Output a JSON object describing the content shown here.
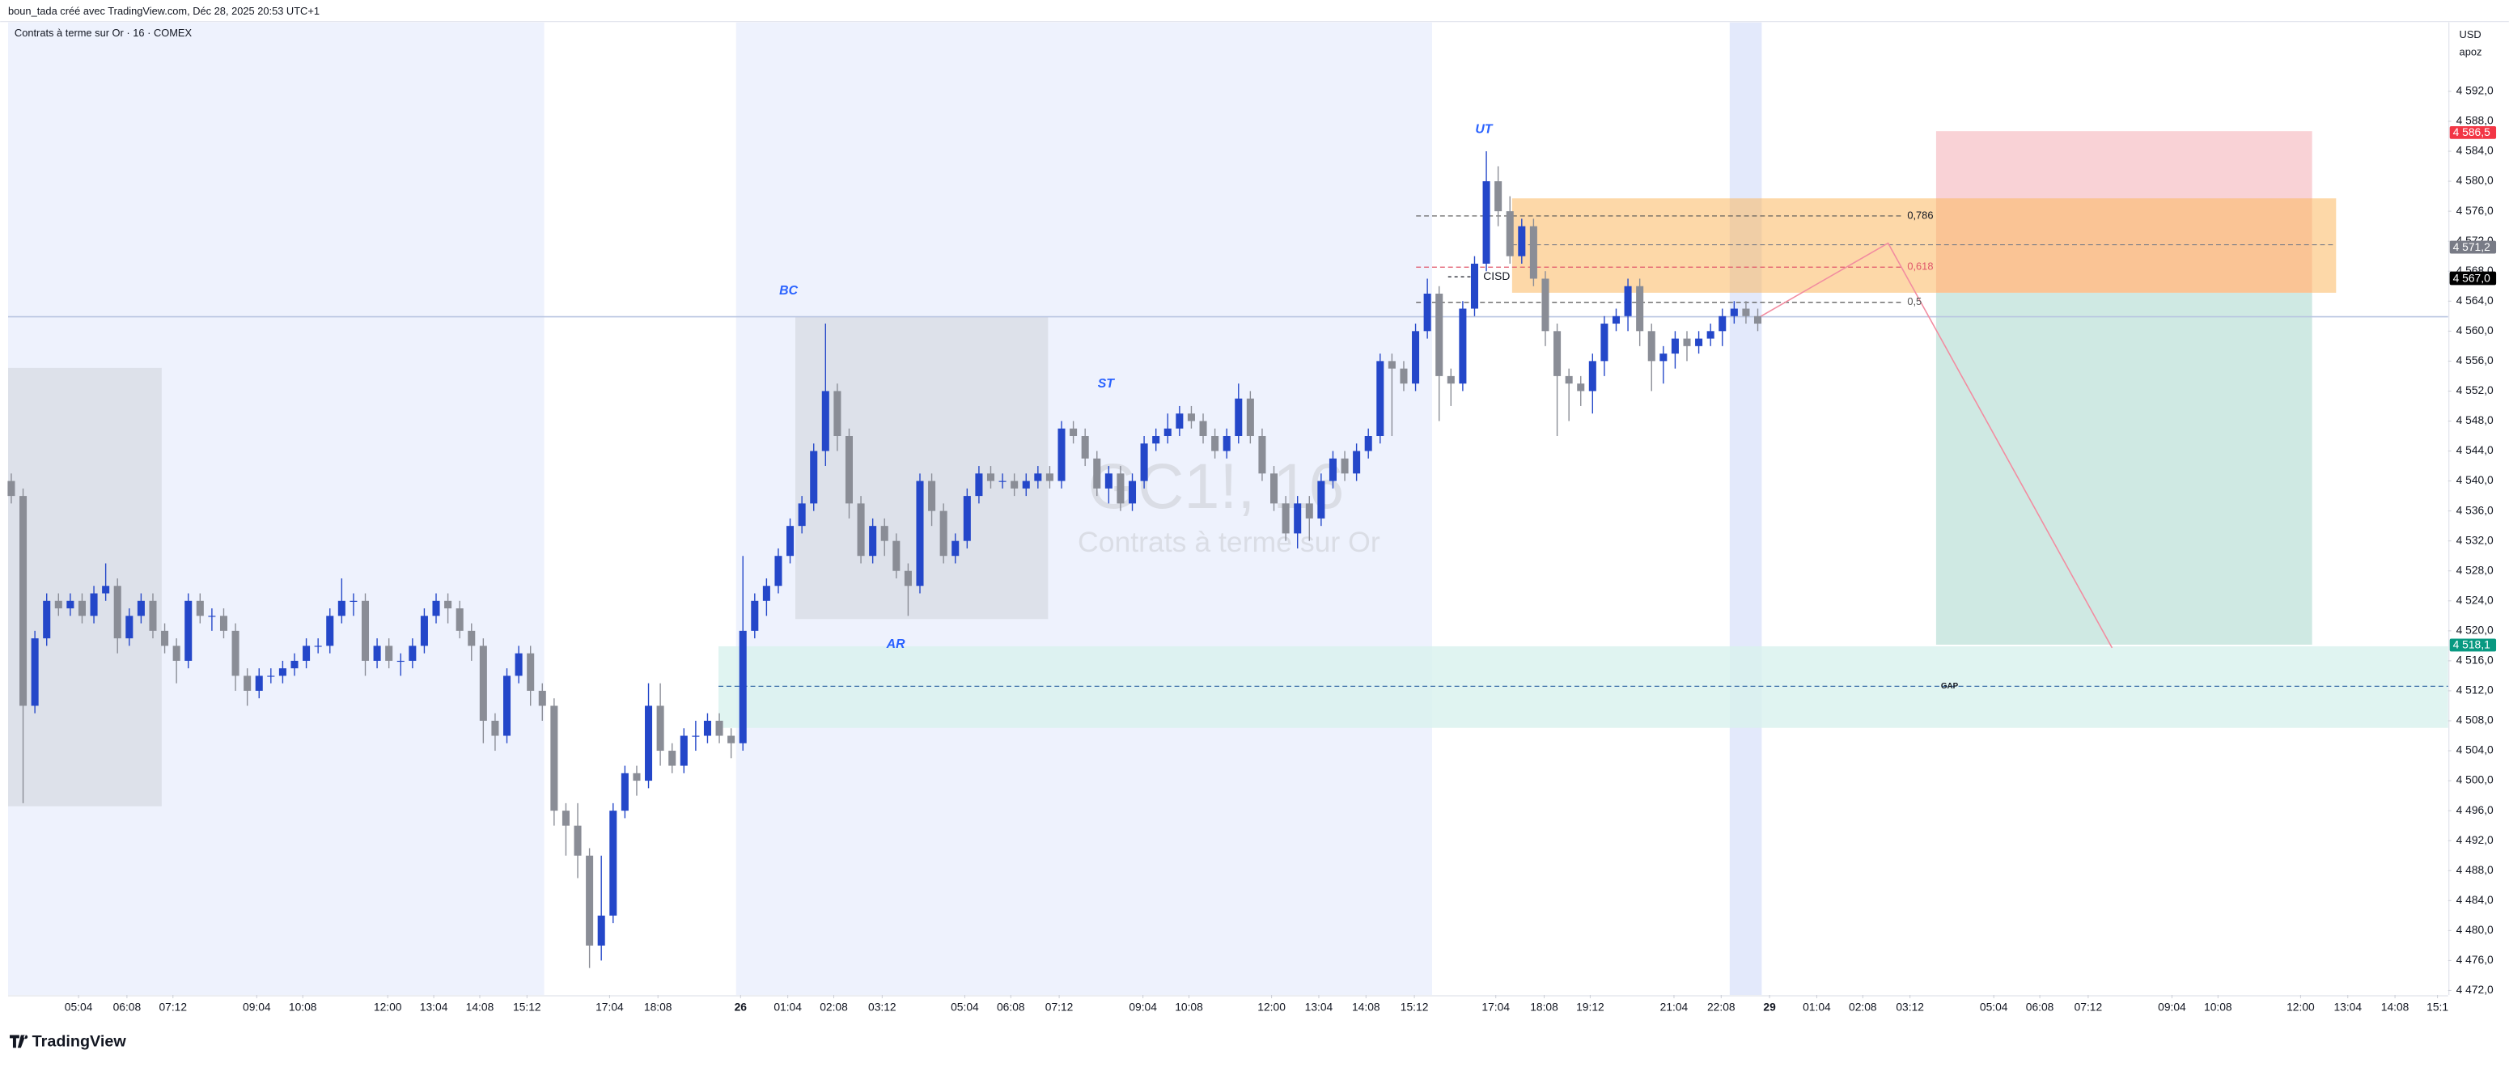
{
  "page": {
    "header": "boun_tada créé avec TradingView.com, Déc 28, 2025 20:53 UTC+1",
    "brand": "TradingView"
  },
  "chart_data": {
    "type": "candlestick",
    "symbol": "Contrats à terme sur Or · 16 · COMEX",
    "watermark_symbol": "GC1!, 16",
    "watermark_name": "Contrats à terme sur Or",
    "currency": "USD",
    "account": "apoz",
    "up_color": "#2447c9",
    "down_color": "#8a8d96",
    "annotations": {
      "bc": "BC",
      "st": "ST",
      "ar": "AR",
      "ut": "UT",
      "cisd": "CISD",
      "gap": "GAP"
    },
    "fib_levels": [
      "0,786",
      "0,618",
      "0,5"
    ],
    "xlim": [
      -0.27,
      206.5
    ],
    "ylim": [
      4471.4,
      4601.2
    ],
    "xticks": [
      {
        "value": 5.7,
        "label": "05:04"
      },
      {
        "value": 9.8,
        "label": "06:08"
      },
      {
        "value": 13.7,
        "label": "07:12"
      },
      {
        "value": 20.8,
        "label": "09:04"
      },
      {
        "value": 24.7,
        "label": "10:08"
      },
      {
        "value": 31.9,
        "label": "12:00"
      },
      {
        "value": 35.8,
        "label": "13:04"
      },
      {
        "value": 39.7,
        "label": "14:08"
      },
      {
        "value": 43.7,
        "label": "15:12"
      },
      {
        "value": 50.7,
        "label": "17:04"
      },
      {
        "value": 54.8,
        "label": "18:08"
      },
      {
        "value": 61.8,
        "label": "26"
      },
      {
        "value": 65.8,
        "label": "01:04"
      },
      {
        "value": 69.7,
        "label": "02:08"
      },
      {
        "value": 73.8,
        "label": "03:12"
      },
      {
        "value": 80.8,
        "label": "05:04"
      },
      {
        "value": 84.7,
        "label": "06:08"
      },
      {
        "value": 88.8,
        "label": "07:12"
      },
      {
        "value": 95.9,
        "label": "09:04"
      },
      {
        "value": 99.8,
        "label": "10:08"
      },
      {
        "value": 106.8,
        "label": "12:00"
      },
      {
        "value": 110.8,
        "label": "13:04"
      },
      {
        "value": 114.8,
        "label": "14:08"
      },
      {
        "value": 118.9,
        "label": "15:12"
      },
      {
        "value": 125.8,
        "label": "17:04"
      },
      {
        "value": 129.9,
        "label": "18:08"
      },
      {
        "value": 133.8,
        "label": "19:12"
      },
      {
        "value": 140.9,
        "label": "21:04"
      },
      {
        "value": 144.9,
        "label": "22:08"
      },
      {
        "value": 149.0,
        "label": "29"
      },
      {
        "value": 153.0,
        "label": "01:04"
      },
      {
        "value": 156.9,
        "label": "02:08"
      },
      {
        "value": 160.9,
        "label": "03:12"
      },
      {
        "value": 168.0,
        "label": "05:04"
      },
      {
        "value": 171.9,
        "label": "06:08"
      },
      {
        "value": 176.0,
        "label": "07:12"
      },
      {
        "value": 183.1,
        "label": "09:04"
      },
      {
        "value": 187.0,
        "label": "10:08"
      },
      {
        "value": 194.0,
        "label": "12:00"
      },
      {
        "value": 198.0,
        "label": "13:04"
      },
      {
        "value": 202.0,
        "label": "14:08"
      },
      {
        "value": 205.6,
        "label": "15:1"
      }
    ],
    "yticks": [
      {
        "value": 4592,
        "label": "4 592,0"
      },
      {
        "value": 4588,
        "label": "4 588,0"
      },
      {
        "value": 4584,
        "label": "4 584,0"
      },
      {
        "value": 4580,
        "label": "4 580,0"
      },
      {
        "value": 4576,
        "label": "4 576,0"
      },
      {
        "value": 4572,
        "label": "4 572,0"
      },
      {
        "value": 4568,
        "label": "4 568,0"
      },
      {
        "value": 4564,
        "label": "4 564,0"
      },
      {
        "value": 4560,
        "label": "4 560,0"
      },
      {
        "value": 4556,
        "label": "4 556,0"
      },
      {
        "value": 4552,
        "label": "4 552,0"
      },
      {
        "value": 4548,
        "label": "4 548,0"
      },
      {
        "value": 4544,
        "label": "4 544,0"
      },
      {
        "value": 4540,
        "label": "4 540,0"
      },
      {
        "value": 4536,
        "label": "4 536,0"
      },
      {
        "value": 4532,
        "label": "4 532,0"
      },
      {
        "value": 4528,
        "label": "4 528,0"
      },
      {
        "value": 4524,
        "label": "4 524,0"
      },
      {
        "value": 4520,
        "label": "4 520,0"
      },
      {
        "value": 4516,
        "label": "4 516,0"
      },
      {
        "value": 4512,
        "label": "4 512,0"
      },
      {
        "value": 4508,
        "label": "4 508,0"
      },
      {
        "value": 4504,
        "label": "4 504,0"
      },
      {
        "value": 4500,
        "label": "4 500,0"
      },
      {
        "value": 4496,
        "label": "4 496,0"
      },
      {
        "value": 4492,
        "label": "4 492,0"
      },
      {
        "value": 4488,
        "label": "4 488,0"
      },
      {
        "value": 4484,
        "label": "4 484,0"
      },
      {
        "value": 4480,
        "label": "4 480,0"
      },
      {
        "value": 4476,
        "label": "4 476,0"
      },
      {
        "value": 4472,
        "label": "4 472,0"
      }
    ],
    "price_labels": [
      {
        "value": 4586.5,
        "label": "4 586,5",
        "color": "#f23645"
      },
      {
        "value": 4571.2,
        "label": "4 571,2",
        "color": "#787b86"
      },
      {
        "value": 4567.1,
        "label": "4 567,1",
        "color": "#000000"
      },
      {
        "value": 4567.0,
        "label": "4 567,0",
        "color": "#000000"
      },
      {
        "value": 4518.1,
        "label": "4 518,1",
        "color": "#089981"
      }
    ],
    "open": [
      4540,
      4538,
      4510,
      4519,
      4524,
      4523,
      4524,
      4522,
      4525,
      4526,
      4519,
      4522,
      4524,
      4520,
      4518,
      4516,
      4524,
      4522,
      4522,
      4520,
      4514,
      4512,
      4514,
      4514,
      4515,
      4516,
      4518,
      4518,
      4522,
      4524,
      4524,
      4516,
      4518,
      4516,
      4516,
      4518,
      4522,
      4524,
      4523,
      4520,
      4518,
      4508,
      4506,
      4514,
      4517,
      4512,
      4510,
      4496,
      4494,
      4490,
      4478,
      4482,
      4496,
      4501,
      4500,
      4510,
      4504,
      4502,
      4506,
      4506,
      4508,
      4506,
      4505,
      4520,
      4524,
      4526,
      4530,
      4534,
      4537,
      4544,
      4552,
      4546,
      4537,
      4530,
      4534,
      4532,
      4528,
      4526,
      4540,
      4536,
      4530,
      4532,
      4538,
      4541,
      4540,
      4540,
      4539,
      4540,
      4541,
      4540,
      4547,
      4546,
      4543,
      4539,
      4541,
      4537,
      4540,
      4545,
      4546,
      4547,
      4549,
      4548,
      4546,
      4544,
      4546,
      4551,
      4546,
      4541,
      4537,
      4533,
      4537,
      4535,
      4540,
      4543,
      4541,
      4544,
      4546,
      4556,
      4555,
      4553,
      4560,
      4565,
      4554,
      4553,
      4563,
      4569,
      4580,
      4576,
      4570,
      4574,
      4567,
      4560,
      4554,
      4553,
      4552,
      4556,
      4561,
      4562,
      4566,
      4560,
      4556,
      4557,
      4559,
      4558,
      4559,
      4560,
      4562,
      4563,
      4562
    ],
    "high": [
      4541,
      4539,
      4520,
      4525,
      4525,
      4525,
      4525,
      4526,
      4529,
      4527,
      4523,
      4525,
      4525,
      4521,
      4519,
      4525,
      4525,
      4523,
      4523,
      4521,
      4515,
      4515,
      4515,
      4516,
      4517,
      4519,
      4519,
      4523,
      4527,
      4525,
      4525,
      4519,
      4519,
      4517,
      4519,
      4523,
      4525,
      4525,
      4524,
      4521,
      4519,
      4509,
      4515,
      4518,
      4518,
      4513,
      4511,
      4497,
      4497,
      4491,
      4490,
      4497,
      4502,
      4502,
      4513,
      4513,
      4505,
      4507,
      4508,
      4509,
      4509,
      4507,
      4530,
      4525,
      4527,
      4531,
      4535,
      4538,
      4545,
      4561,
      4553,
      4547,
      4538,
      4535,
      4535,
      4533,
      4529,
      4541,
      4541,
      4537,
      4533,
      4539,
      4542,
      4542,
      4541,
      4541,
      4541,
      4542,
      4542,
      4548,
      4548,
      4547,
      4544,
      4542,
      4542,
      4541,
      4546,
      4547,
      4549,
      4550,
      4550,
      4549,
      4547,
      4547,
      4553,
      4552,
      4547,
      4542,
      4538,
      4538,
      4538,
      4541,
      4544,
      4544,
      4545,
      4547,
      4557,
      4557,
      4556,
      4561,
      4567,
      4566,
      4555,
      4564,
      4570,
      4584,
      4582,
      4578,
      4575,
      4575,
      4568,
      4561,
      4555,
      4554,
      4557,
      4562,
      4563,
      4567,
      4567,
      4561,
      4558,
      4560,
      4560,
      4560,
      4561,
      4563,
      4564,
      4564,
      4563
    ],
    "low": [
      4537,
      4497,
      4509,
      4518,
      4522,
      4522,
      4521,
      4521,
      4524,
      4517,
      4518,
      4521,
      4519,
      4517,
      4513,
      4515,
      4521,
      4520,
      4519,
      4512,
      4510,
      4511,
      4513,
      4513,
      4514,
      4515,
      4517,
      4517,
      4521,
      4522,
      4514,
      4515,
      4515,
      4514,
      4515,
      4517,
      4521,
      4521,
      4519,
      4516,
      4505,
      4504,
      4505,
      4513,
      4510,
      4508,
      4494,
      4490,
      4487,
      4475,
      4476,
      4481,
      4495,
      4498,
      4499,
      4502,
      4501,
      4501,
      4504,
      4505,
      4505,
      4503,
      4504,
      4519,
      4522,
      4525,
      4529,
      4533,
      4536,
      4542,
      4544,
      4535,
      4529,
      4529,
      4530,
      4527,
      4522,
      4525,
      4534,
      4529,
      4529,
      4531,
      4537,
      4539,
      4539,
      4538,
      4538,
      4539,
      4539,
      4539,
      4545,
      4542,
      4538,
      4537,
      4536,
      4536,
      4539,
      4544,
      4545,
      4546,
      4547,
      4545,
      4543,
      4543,
      4545,
      4545,
      4540,
      4536,
      4532,
      4531,
      4532,
      4534,
      4539,
      4540,
      4540,
      4543,
      4545,
      4546,
      4552,
      4552,
      4559,
      4548,
      4550,
      4552,
      4562,
      4568,
      4574,
      4569,
      4569,
      4566,
      4558,
      4546,
      4548,
      4550,
      4549,
      4554,
      4560,
      4560,
      4558,
      4552,
      4553,
      4555,
      4556,
      4557,
      4558,
      4558,
      4561,
      4561,
      4560
    ],
    "close": [
      4538,
      4510,
      4519,
      4524,
      4523,
      4524,
      4522,
      4525,
      4526,
      4519,
      4522,
      4524,
      4520,
      4518,
      4516,
      4524,
      4522,
      4522,
      4520,
      4514,
      4512,
      4514,
      4514,
      4515,
      4516,
      4518,
      4518,
      4522,
      4524,
      4524,
      4516,
      4518,
      4516,
      4516,
      4518,
      4522,
      4524,
      4523,
      4520,
      4518,
      4508,
      4506,
      4514,
      4517,
      4512,
      4510,
      4496,
      4494,
      4490,
      4478,
      4482,
      4496,
      4501,
      4500,
      4510,
      4504,
      4502,
      4506,
      4506,
      4508,
      4506,
      4505,
      4520,
      4524,
      4526,
      4530,
      4534,
      4537,
      4544,
      4552,
      4546,
      4537,
      4530,
      4534,
      4532,
      4528,
      4526,
      4540,
      4536,
      4530,
      4532,
      4538,
      4541,
      4540,
      4540,
      4539,
      4540,
      4541,
      4540,
      4547,
      4546,
      4543,
      4539,
      4541,
      4537,
      4540,
      4545,
      4546,
      4547,
      4549,
      4548,
      4546,
      4544,
      4546,
      4551,
      4546,
      4541,
      4537,
      4533,
      4537,
      4535,
      4540,
      4543,
      4541,
      4544,
      4546,
      4556,
      4555,
      4553,
      4560,
      4565,
      4554,
      4553,
      4563,
      4569,
      4580,
      4576,
      4570,
      4574,
      4567,
      4560,
      4554,
      4553,
      4552,
      4556,
      4561,
      4562,
      4566,
      4560,
      4556,
      4557,
      4559,
      4558,
      4559,
      4560,
      4562,
      4563,
      4562,
      4561
    ]
  }
}
